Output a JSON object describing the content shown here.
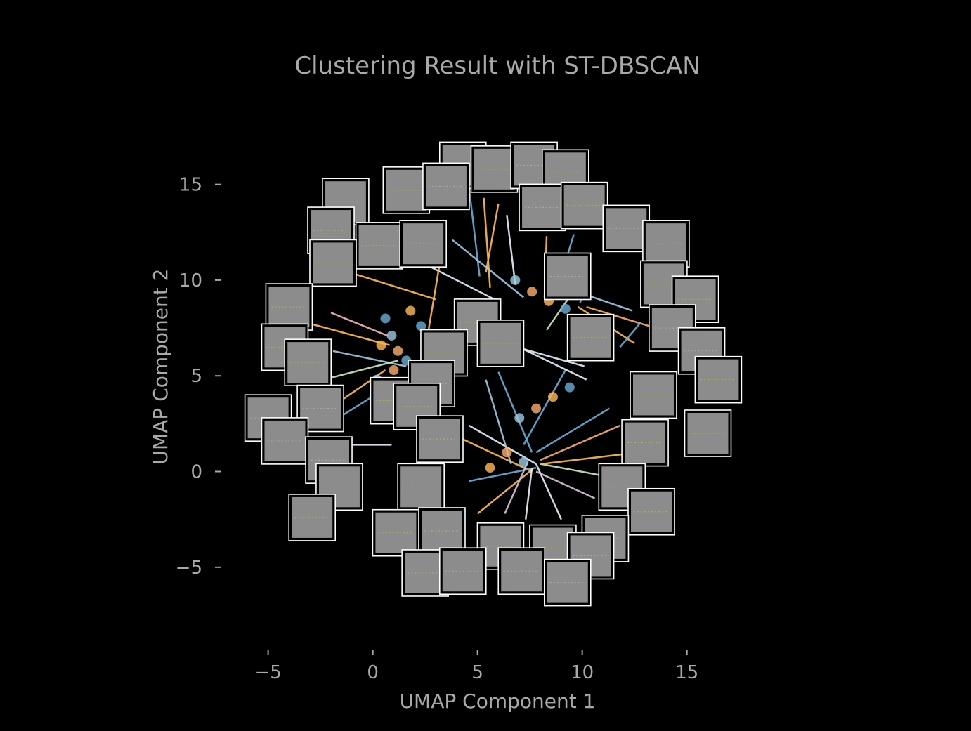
{
  "chart_data": {
    "type": "scatter",
    "title": "Clustering Result with ST-DBSCAN",
    "xlabel": "UMAP Component 1",
    "ylabel": "UMAP Component 2",
    "xlim": [
      -7,
      18.5
    ],
    "ylim": [
      -9.3,
      19.5
    ],
    "x_ticks": [
      -5,
      0,
      5,
      10,
      15
    ],
    "x_tick_labels": [
      "−5",
      "0",
      "5",
      "10",
      "15"
    ],
    "y_ticks": [
      -5,
      0,
      5,
      10,
      15
    ],
    "y_tick_labels": [
      "−5",
      "0",
      "5",
      "10",
      "15"
    ],
    "grid": false,
    "legend": "none",
    "background": "#000000",
    "text_color": "#a9a9a9",
    "thumbnail_color": "#8c8c8c",
    "thumbnail_border": "#ffffff",
    "cluster_colors": [
      "#6baed6",
      "#9ecae1",
      "#fdae6b",
      "#ffbb55",
      "#c7e9c0",
      "#e6f2fb",
      "#f4b6c2",
      "#d6c4d8"
    ],
    "cluster_dots": [
      {
        "x": 0.6,
        "y": 8.0
      },
      {
        "x": 0.9,
        "y": 7.1
      },
      {
        "x": 1.2,
        "y": 6.3
      },
      {
        "x": 0.4,
        "y": 6.6
      },
      {
        "x": 1.6,
        "y": 5.8
      },
      {
        "x": 0.2,
        "y": 4.8
      },
      {
        "x": 1.0,
        "y": 5.3
      },
      {
        "x": 1.8,
        "y": 8.4
      },
      {
        "x": 2.3,
        "y": 7.6
      },
      {
        "x": 6.8,
        "y": 10.0
      },
      {
        "x": 7.6,
        "y": 9.4
      },
      {
        "x": 8.4,
        "y": 8.9
      },
      {
        "x": 9.2,
        "y": 8.5
      },
      {
        "x": 7.0,
        "y": 2.8
      },
      {
        "x": 7.8,
        "y": 3.3
      },
      {
        "x": 8.6,
        "y": 3.9
      },
      {
        "x": 9.4,
        "y": 4.4
      },
      {
        "x": 7.2,
        "y": 0.5
      },
      {
        "x": 6.4,
        "y": 1.0
      },
      {
        "x": 5.6,
        "y": 0.2
      }
    ],
    "connector_lines": [
      {
        "x1": 4.6,
        "y1": 14.8,
        "x2": 5.1,
        "y2": 10.2,
        "c": 0
      },
      {
        "x1": 5.3,
        "y1": 14.3,
        "x2": 5.6,
        "y2": 9.6,
        "c": 3
      },
      {
        "x1": 6.0,
        "y1": 14.0,
        "x2": 5.4,
        "y2": 10.4,
        "c": 3
      },
      {
        "x1": 6.4,
        "y1": 13.4,
        "x2": 6.8,
        "y2": 9.8,
        "c": 5
      },
      {
        "x1": 8.3,
        "y1": 12.3,
        "x2": 8.2,
        "y2": 9.1,
        "c": 3
      },
      {
        "x1": 9.6,
        "y1": 12.4,
        "x2": 8.8,
        "y2": 9.5,
        "c": 0
      },
      {
        "x1": 10.4,
        "y1": 11.3,
        "x2": 9.9,
        "y2": 8.8,
        "c": 0
      },
      {
        "x1": 3.8,
        "y1": 12.1,
        "x2": 7.2,
        "y2": 9.1,
        "c": 1
      },
      {
        "x1": 2.2,
        "y1": 11.0,
        "x2": 5.8,
        "y2": 9.0,
        "c": 5
      },
      {
        "x1": 3.2,
        "y1": 10.9,
        "x2": 2.6,
        "y2": 7.0,
        "c": 3
      },
      {
        "x1": -0.8,
        "y1": 10.3,
        "x2": 3.0,
        "y2": 9.0,
        "c": 3
      },
      {
        "x1": -2.0,
        "y1": 8.3,
        "x2": 0.7,
        "y2": 7.1,
        "c": 6
      },
      {
        "x1": -2.9,
        "y1": 7.7,
        "x2": 0.8,
        "y2": 6.6,
        "c": 3
      },
      {
        "x1": -1.9,
        "y1": 6.3,
        "x2": 1.6,
        "y2": 5.5,
        "c": 1
      },
      {
        "x1": -2.0,
        "y1": 4.9,
        "x2": 1.2,
        "y2": 5.8,
        "c": 4
      },
      {
        "x1": -1.4,
        "y1": 3.8,
        "x2": 0.6,
        "y2": 5.3,
        "c": 3
      },
      {
        "x1": -1.8,
        "y1": 2.7,
        "x2": 0.4,
        "y2": 4.2,
        "c": 0
      },
      {
        "x1": -2.4,
        "y1": 1.4,
        "x2": 0.9,
        "y2": 1.4,
        "c": 5
      },
      {
        "x1": 3.3,
        "y1": 2.2,
        "x2": 7.6,
        "y2": 0.0,
        "c": 3
      },
      {
        "x1": 4.6,
        "y1": 2.4,
        "x2": 7.8,
        "y2": 0.4,
        "c": 5
      },
      {
        "x1": 4.6,
        "y1": -0.5,
        "x2": 7.8,
        "y2": 0.2,
        "c": 0
      },
      {
        "x1": 5.0,
        "y1": -2.2,
        "x2": 7.6,
        "y2": 0.1,
        "c": 3
      },
      {
        "x1": 6.3,
        "y1": -2.2,
        "x2": 7.4,
        "y2": 0.5,
        "c": 7
      },
      {
        "x1": 7.3,
        "y1": -2.5,
        "x2": 7.6,
        "y2": 0.2,
        "c": 5
      },
      {
        "x1": 9.0,
        "y1": -2.5,
        "x2": 7.8,
        "y2": 0.4,
        "c": 5
      },
      {
        "x1": 10.6,
        "y1": -1.4,
        "x2": 7.8,
        "y2": 0.0,
        "c": 7
      },
      {
        "x1": 11.4,
        "y1": -0.3,
        "x2": 8.0,
        "y2": 0.4,
        "c": 4
      },
      {
        "x1": 11.9,
        "y1": 0.9,
        "x2": 8.1,
        "y2": 0.4,
        "c": 3
      },
      {
        "x1": 11.8,
        "y1": 2.4,
        "x2": 8.0,
        "y2": 0.6,
        "c": 2
      },
      {
        "x1": 11.3,
        "y1": 3.3,
        "x2": 7.8,
        "y2": 1.0,
        "c": 0
      },
      {
        "x1": 6.0,
        "y1": 5.2,
        "x2": 7.6,
        "y2": 1.0,
        "c": 0
      },
      {
        "x1": 5.4,
        "y1": 4.8,
        "x2": 6.6,
        "y2": 0.4,
        "c": 1
      },
      {
        "x1": 9.2,
        "y1": 5.3,
        "x2": 7.2,
        "y2": 1.4,
        "c": 0
      },
      {
        "x1": 10.1,
        "y1": 5.5,
        "x2": 7.2,
        "y2": 6.4,
        "c": 5
      },
      {
        "x1": 10.2,
        "y1": 4.8,
        "x2": 6.8,
        "y2": 6.6,
        "c": 5
      },
      {
        "x1": 12.5,
        "y1": 6.7,
        "x2": 9.8,
        "y2": 8.6,
        "c": 3
      },
      {
        "x1": 13.2,
        "y1": 7.6,
        "x2": 10.2,
        "y2": 8.6,
        "c": 2
      },
      {
        "x1": 12.4,
        "y1": 8.4,
        "x2": 9.2,
        "y2": 9.6,
        "c": 1
      },
      {
        "x1": 11.8,
        "y1": 6.5,
        "x2": 12.8,
        "y2": 7.8,
        "c": 0
      },
      {
        "x1": 8.3,
        "y1": 7.4,
        "x2": 10.2,
        "y2": 10.4,
        "c": 4
      }
    ],
    "thumbnails": [
      {
        "x": 4.3,
        "y": 16.0
      },
      {
        "x": 5.8,
        "y": 15.8
      },
      {
        "x": 7.7,
        "y": 16.0
      },
      {
        "x": 9.2,
        "y": 15.6
      },
      {
        "x": 1.6,
        "y": 14.7
      },
      {
        "x": 3.5,
        "y": 14.9
      },
      {
        "x": 8.1,
        "y": 13.8
      },
      {
        "x": 10.1,
        "y": 13.9
      },
      {
        "x": -1.3,
        "y": 14.1
      },
      {
        "x": -2.0,
        "y": 12.6
      },
      {
        "x": 0.3,
        "y": 11.8
      },
      {
        "x": 2.4,
        "y": 11.9
      },
      {
        "x": -1.9,
        "y": 10.9
      },
      {
        "x": 12.1,
        "y": 12.7
      },
      {
        "x": 14.0,
        "y": 11.9
      },
      {
        "x": 9.3,
        "y": 10.2
      },
      {
        "x": 13.9,
        "y": 9.8
      },
      {
        "x": 15.4,
        "y": 9.0
      },
      {
        "x": -4.0,
        "y": 8.6
      },
      {
        "x": -4.2,
        "y": 6.5
      },
      {
        "x": -3.1,
        "y": 5.7
      },
      {
        "x": 5.0,
        "y": 7.8
      },
      {
        "x": 6.1,
        "y": 6.7
      },
      {
        "x": 3.4,
        "y": 6.2
      },
      {
        "x": 10.4,
        "y": 7.0
      },
      {
        "x": 14.3,
        "y": 7.5
      },
      {
        "x": 15.7,
        "y": 6.3
      },
      {
        "x": 16.5,
        "y": 4.8
      },
      {
        "x": -2.5,
        "y": 3.3
      },
      {
        "x": -5.0,
        "y": 2.8
      },
      {
        "x": 1.0,
        "y": 3.7
      },
      {
        "x": 2.8,
        "y": 4.6
      },
      {
        "x": 2.1,
        "y": 3.4
      },
      {
        "x": 3.2,
        "y": 1.7
      },
      {
        "x": -4.2,
        "y": 1.6
      },
      {
        "x": -2.1,
        "y": 0.6
      },
      {
        "x": -1.6,
        "y": -0.8
      },
      {
        "x": 2.3,
        "y": -0.8
      },
      {
        "x": 13.4,
        "y": 4.0
      },
      {
        "x": 13.0,
        "y": 1.5
      },
      {
        "x": 16.0,
        "y": 2.0
      },
      {
        "x": 11.9,
        "y": -0.8
      },
      {
        "x": 13.3,
        "y": -2.1
      },
      {
        "x": 11.1,
        "y": -3.5
      },
      {
        "x": -2.9,
        "y": -2.4
      },
      {
        "x": 1.1,
        "y": -3.2
      },
      {
        "x": 3.3,
        "y": -3.1
      },
      {
        "x": 6.1,
        "y": -3.9
      },
      {
        "x": 8.6,
        "y": -4.0
      },
      {
        "x": 10.4,
        "y": -4.4
      },
      {
        "x": 2.5,
        "y": -5.3
      },
      {
        "x": 4.3,
        "y": -5.2
      },
      {
        "x": 7.1,
        "y": -5.2
      },
      {
        "x": 9.3,
        "y": -5.8
      }
    ]
  }
}
